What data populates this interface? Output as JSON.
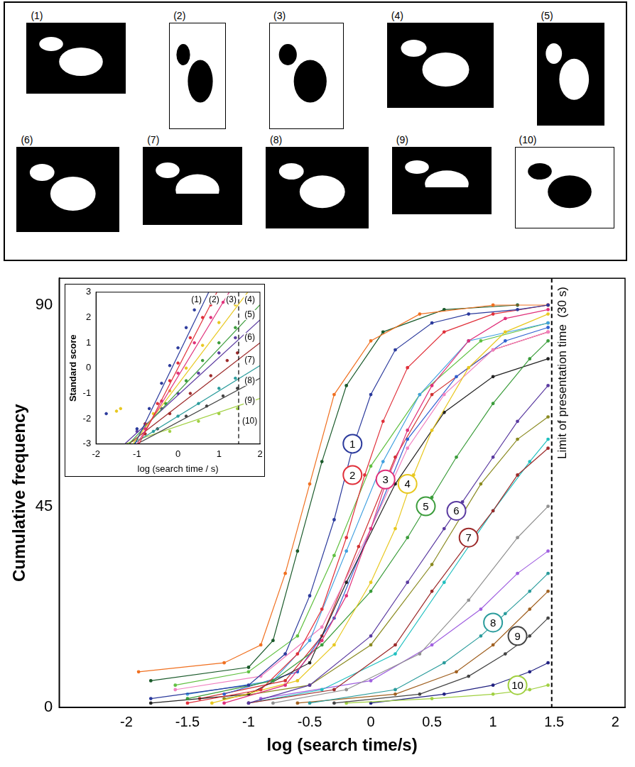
{
  "images": {
    "labels": [
      "(1)",
      "(2)",
      "(3)",
      "(4)",
      "(5)",
      "(6)",
      "(7)",
      "(8)",
      "(9)",
      "(10)"
    ]
  },
  "chart_data": [
    {
      "type": "line",
      "x_label": "log (search time/s)",
      "y_label": "Cumulative frequency",
      "xlim": [
        -2.55,
        2.08
      ],
      "xticks": [
        -2,
        -1.5,
        -1,
        -0.5,
        0,
        0.5,
        1,
        1.5,
        2
      ],
      "ylim": [
        0,
        96
      ],
      "yticks": [
        0,
        45,
        90
      ],
      "grid": false,
      "marker": "circle",
      "vline": {
        "x": 1.48,
        "text": "Limit of presentation time  (30 s)",
        "line_style": "dashed"
      },
      "series": [
        {
          "name": "1",
          "color": "#2b3a9c",
          "label_at": [
            -0.15,
            59
          ],
          "x": [
            -1.8,
            -1,
            -0.7,
            -0.5,
            -0.3,
            -0.15,
            0,
            0.2,
            0.5,
            0.8,
            1.2,
            1.45
          ],
          "values": [
            2,
            5,
            12,
            25,
            42,
            58,
            70,
            80,
            86,
            88,
            89,
            90
          ]
        },
        {
          "name": "2",
          "color": "#e0303a",
          "label_at": [
            -0.15,
            52
          ],
          "x": [
            -1.5,
            -0.9,
            -0.6,
            -0.4,
            -0.2,
            -0.05,
            0.1,
            0.3,
            0.6,
            1,
            1.45
          ],
          "values": [
            1,
            4,
            12,
            22,
            38,
            52,
            64,
            76,
            84,
            88,
            90
          ]
        },
        {
          "name": "3",
          "color": "#e0307a",
          "label_at": [
            0.12,
            51
          ],
          "x": [
            -1.2,
            -0.7,
            -0.4,
            -0.2,
            0,
            0.12,
            0.3,
            0.5,
            0.8,
            1.1,
            1.45
          ],
          "values": [
            1,
            5,
            15,
            25,
            40,
            50,
            62,
            72,
            82,
            87,
            89
          ]
        },
        {
          "name": "4",
          "color": "#e8c820",
          "label_at": [
            0.3,
            50
          ],
          "x": [
            -1.3,
            -0.6,
            -0.3,
            0,
            0.2,
            0.35,
            0.5,
            0.8,
            1.1,
            1.45
          ],
          "values": [
            1,
            6,
            14,
            28,
            40,
            52,
            62,
            76,
            84,
            88
          ]
        },
        {
          "name": "5",
          "color": "#3a9c3a",
          "label_at": [
            0.45,
            45
          ],
          "x": [
            -1.5,
            -0.8,
            -0.4,
            0,
            0.3,
            0.5,
            0.7,
            1,
            1.3,
            1.45
          ],
          "values": [
            2,
            6,
            14,
            26,
            38,
            47,
            56,
            68,
            78,
            82
          ]
        },
        {
          "name": "6",
          "color": "#5a3aa0",
          "label_at": [
            0.7,
            44
          ],
          "x": [
            -1,
            -0.5,
            0,
            0.3,
            0.6,
            0.75,
            1,
            1.2,
            1.45
          ],
          "values": [
            1,
            5,
            16,
            28,
            40,
            46,
            56,
            64,
            72
          ]
        },
        {
          "name": "7",
          "color": "#9c2a2a",
          "label_at": [
            0.8,
            38
          ],
          "x": [
            -1,
            -0.3,
            0.2,
            0.5,
            0.8,
            1,
            1.2,
            1.45
          ],
          "values": [
            1,
            4,
            14,
            26,
            37,
            44,
            52,
            58
          ]
        },
        {
          "name": "8",
          "color": "#2a9c9c",
          "label_at": [
            1,
            19
          ],
          "x": [
            -0.5,
            0.2,
            0.6,
            0.9,
            1.1,
            1.3,
            1.45
          ],
          "values": [
            1,
            4,
            10,
            16,
            21,
            26,
            30
          ]
        },
        {
          "name": "9",
          "color": "#444444",
          "label_at": [
            1.2,
            16
          ],
          "x": [
            -0.3,
            0.4,
            0.8,
            1.1,
            1.3,
            1.45
          ],
          "values": [
            1,
            3,
            7,
            12,
            16,
            20
          ]
        },
        {
          "name": "10",
          "color": "#a0d040",
          "label_at": [
            1.2,
            5
          ],
          "x": [
            -0.2,
            0.5,
            1,
            1.3,
            1.45
          ],
          "values": [
            1,
            2,
            3,
            4,
            5
          ]
        },
        {
          "color": "#f07020",
          "x": [
            -1.9,
            -1.2,
            -0.9,
            -0.7,
            -0.5,
            -0.3,
            0,
            0.4,
            1,
            1.45
          ],
          "values": [
            8,
            10,
            14,
            30,
            50,
            70,
            82,
            88,
            90,
            90
          ]
        },
        {
          "color": "#1a5a2a",
          "x": [
            -1.8,
            -1,
            -0.8,
            -0.6,
            -0.4,
            -0.2,
            0.1,
            0.6,
            1.2
          ],
          "values": [
            6,
            9,
            15,
            35,
            55,
            72,
            84,
            89,
            90
          ]
        },
        {
          "color": "#40a0e0",
          "x": [
            -1.5,
            -0.8,
            -0.5,
            -0.2,
            0.1,
            0.4,
            0.8,
            1.45
          ],
          "values": [
            3,
            6,
            15,
            35,
            55,
            70,
            82,
            86
          ]
        },
        {
          "color": "#f080c0",
          "x": [
            -1.6,
            -0.9,
            -0.4,
            0,
            0.3,
            0.6,
            1,
            1.45
          ],
          "values": [
            4,
            7,
            18,
            40,
            58,
            70,
            80,
            84
          ]
        },
        {
          "color": "#222222",
          "x": [
            -1.8,
            -1,
            -0.5,
            -0.2,
            0.2,
            0.6,
            1,
            1.45
          ],
          "values": [
            1,
            3,
            10,
            28,
            50,
            66,
            74,
            78
          ]
        },
        {
          "color": "#8a8a20",
          "x": [
            -1.2,
            -0.5,
            0,
            0.5,
            0.9,
            1.2,
            1.45
          ],
          "values": [
            2,
            5,
            14,
            32,
            50,
            60,
            65
          ]
        },
        {
          "color": "#20c0c0",
          "x": [
            -1,
            -0.4,
            0.2,
            0.6,
            1,
            1.3,
            1.45
          ],
          "values": [
            1,
            4,
            12,
            28,
            44,
            55,
            60
          ]
        },
        {
          "color": "#909090",
          "x": [
            -0.8,
            -0.2,
            0.4,
            0.8,
            1.2,
            1.45
          ],
          "values": [
            1,
            4,
            12,
            24,
            38,
            45
          ]
        },
        {
          "color": "#a060e0",
          "x": [
            -0.9,
            0,
            0.5,
            0.9,
            1.2,
            1.45
          ],
          "values": [
            2,
            6,
            14,
            22,
            30,
            35
          ]
        },
        {
          "color": "#a06020",
          "x": [
            -0.6,
            0.2,
            0.7,
            1,
            1.3,
            1.45
          ],
          "values": [
            1,
            3,
            8,
            14,
            22,
            26
          ]
        },
        {
          "color": "#3060d0",
          "x": [
            -1.2,
            -0.6,
            -0.3,
            0,
            0.3,
            0.7,
            1.1,
            1.45
          ],
          "values": [
            3,
            8,
            20,
            40,
            60,
            74,
            82,
            85
          ]
        },
        {
          "color": "#d03030",
          "x": [
            -1.4,
            -0.7,
            -0.4,
            -0.1,
            0.2,
            0.5,
            1,
            1.45
          ],
          "values": [
            2,
            6,
            16,
            36,
            56,
            70,
            80,
            84
          ]
        },
        {
          "color": "#60c040",
          "x": [
            -1.6,
            -1,
            -0.6,
            -0.3,
            0,
            0.4,
            0.9,
            1.45
          ],
          "values": [
            5,
            8,
            16,
            34,
            54,
            70,
            82,
            86
          ]
        },
        {
          "color": "#202080",
          "x": [
            0,
            0.6,
            1,
            1.3,
            1.45
          ],
          "values": [
            1,
            3,
            5,
            8,
            10
          ]
        }
      ]
    },
    {
      "type": "scatter",
      "x_label": "log (search time / s)",
      "y_label": "Standard score",
      "xlim": [
        -2,
        2
      ],
      "xticks": [
        -2,
        -1,
        0,
        1,
        2
      ],
      "ylim": [
        -3,
        3
      ],
      "yticks": [
        -3,
        -2,
        -1,
        0,
        1,
        2,
        3
      ],
      "grid": false,
      "marker": "circle",
      "vline": {
        "x": 1.48,
        "line_style": "dashed"
      },
      "series": [
        {
          "name": "(1)",
          "color": "#2b3a9c",
          "label_at": [
            0.45,
            2.7
          ],
          "x": [
            -1.75,
            -1,
            -0.7,
            -0.4,
            -0.2,
            0,
            0.2,
            0.4,
            0.5
          ],
          "values": [
            -1.8,
            -2.4,
            -1.6,
            -0.6,
            0.1,
            0.8,
            1.6,
            2.3,
            2.7
          ],
          "fit": {
            "x": [
              -1.05,
              0.75
            ],
            "values": [
              -3,
              3
            ]
          }
        },
        {
          "name": "(2)",
          "color": "#e0303a",
          "label_at": [
            0.88,
            2.7
          ],
          "x": [
            -0.8,
            -0.5,
            -0.2,
            0,
            0.3,
            0.6,
            0.8
          ],
          "values": [
            -2.2,
            -1.4,
            -0.5,
            0.2,
            1.2,
            2,
            2.5
          ],
          "fit": {
            "x": [
              -0.95,
              0.95
            ],
            "values": [
              -3,
              3
            ]
          }
        },
        {
          "name": "(3)",
          "color": "#e0307a",
          "label_at": [
            1.3,
            2.7
          ],
          "x": [
            -0.8,
            -0.4,
            0,
            0.4,
            0.8,
            1.1
          ],
          "values": [
            -2.4,
            -1.3,
            -0.2,
            1,
            2,
            2.6
          ],
          "fit": {
            "x": [
              -1,
              1.25
            ],
            "values": [
              -3,
              3
            ]
          }
        },
        {
          "name": "(4)",
          "color": "#e8c820",
          "label_at": [
            1.75,
            2.7
          ],
          "x": [
            -1.5,
            -1.4,
            -0.6,
            -0.2,
            0.2,
            0.6,
            1,
            1.4
          ],
          "values": [
            -1.7,
            -1.6,
            -1.8,
            -0.9,
            0,
            0.9,
            1.8,
            2.5
          ],
          "fit": {
            "x": [
              -1.1,
              1.7
            ],
            "values": [
              -3,
              3
            ]
          }
        },
        {
          "name": "(5)",
          "color": "#3a9c3a",
          "label_at": [
            1.75,
            2.1
          ],
          "x": [
            -0.8,
            -0.3,
            0.2,
            0.6,
            1,
            1.4
          ],
          "values": [
            -2.2,
            -1.4,
            -0.5,
            0.3,
            1,
            1.6
          ],
          "fit": {
            "x": [
              -1.2,
              2
            ],
            "values": [
              -3,
              2.5
            ]
          }
        },
        {
          "name": "(6)",
          "color": "#5a3aa0",
          "label_at": [
            1.75,
            1.2
          ],
          "x": [
            -1,
            -0.4,
            0,
            0.5,
            1,
            1.4
          ],
          "values": [
            -2.5,
            -1.6,
            -1,
            -0.2,
            0.6,
            1.2
          ],
          "fit": {
            "x": [
              -1.3,
              2
            ],
            "values": [
              -3,
              1.9
            ]
          }
        },
        {
          "name": "(7)",
          "color": "#9c2a2a",
          "label_at": [
            1.75,
            0.3
          ],
          "x": [
            -0.8,
            -0.2,
            0.3,
            0.8,
            1.2,
            1.45
          ],
          "values": [
            -2.6,
            -1.8,
            -1,
            -0.3,
            0.3,
            0.6
          ],
          "fit": {
            "x": [
              -1.2,
              2
            ],
            "values": [
              -3,
              1
            ]
          }
        },
        {
          "name": "(8)",
          "color": "#2a9c9c",
          "label_at": [
            1.75,
            -0.5
          ],
          "x": [
            -0.6,
            0,
            0.5,
            1,
            1.4
          ],
          "values": [
            -2.5,
            -1.9,
            -1.4,
            -0.8,
            -0.4
          ],
          "fit": {
            "x": [
              -1.1,
              2
            ],
            "values": [
              -3,
              0.1
            ]
          }
        },
        {
          "name": "(9)",
          "color": "#444444",
          "label_at": [
            1.75,
            -1.3
          ],
          "x": [
            -0.5,
            0.2,
            0.7,
            1.1,
            1.45
          ],
          "values": [
            -2.4,
            -1.9,
            -1.5,
            -1.1,
            -0.8
          ],
          "fit": {
            "x": [
              -1,
              2
            ],
            "values": [
              -3,
              -0.4
            ]
          }
        },
        {
          "name": "(10)",
          "color": "#a0d040",
          "label_at": [
            1.75,
            -2.1
          ],
          "x": [
            -0.2,
            0.5,
            1,
            1.45
          ],
          "values": [
            -2.5,
            -2.1,
            -1.8,
            -1.6
          ],
          "fit": {
            "x": [
              -1.3,
              2
            ],
            "values": [
              -3,
              -1.2
            ]
          }
        }
      ]
    }
  ]
}
